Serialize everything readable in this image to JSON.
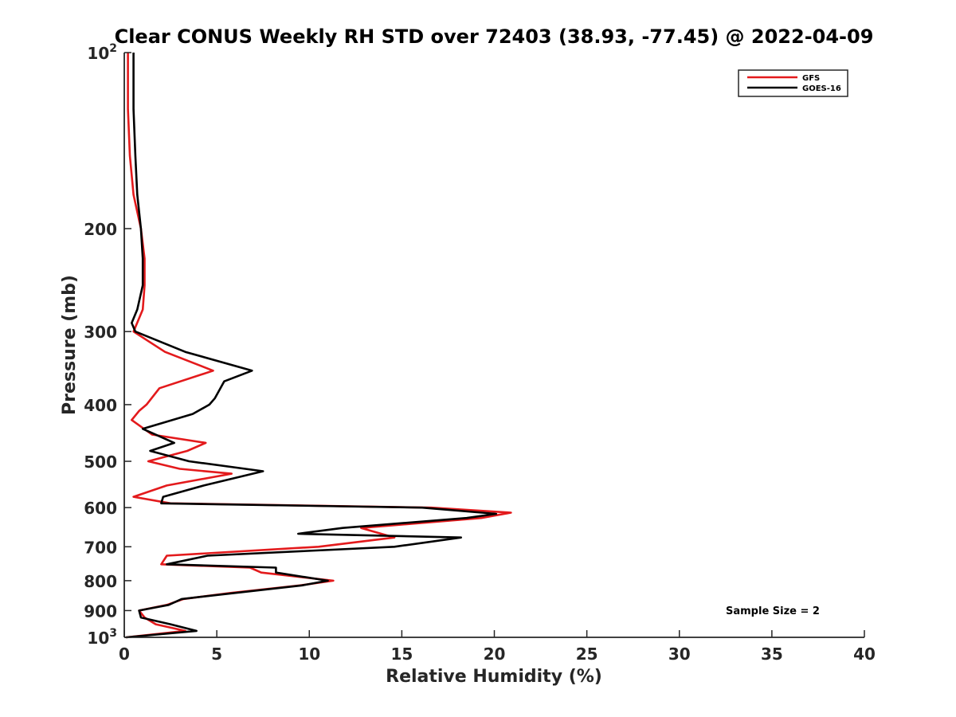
{
  "chart_data": {
    "type": "line",
    "title": "Clear CONUS Weekly RH STD over 72403 (38.93, -77.45) @ 2022-04-09",
    "xlabel": "Relative Humidity (%)",
    "ylabel": "Pressure (mb)",
    "xlim": [
      0,
      40
    ],
    "ylim": [
      100,
      1000
    ],
    "y_scale": "log",
    "y_reversed": true,
    "x_ticks": [
      0,
      5,
      10,
      15,
      20,
      25,
      30,
      35,
      40
    ],
    "x_tick_labels": [
      "0",
      "5",
      "10",
      "15",
      "20",
      "25",
      "30",
      "35",
      "40"
    ],
    "y_ticks": [
      100,
      200,
      300,
      400,
      500,
      600,
      700,
      800,
      900,
      1000
    ],
    "y_tick_labels": [
      {
        "base": "10",
        "exp": "2"
      },
      {
        "text": "200"
      },
      {
        "text": "300"
      },
      {
        "text": "400"
      },
      {
        "text": "500"
      },
      {
        "text": "600"
      },
      {
        "text": "700"
      },
      {
        "text": "800"
      },
      {
        "text": "900"
      },
      {
        "base": "10",
        "exp": "3"
      }
    ],
    "grid": false,
    "legend_position": "top-right",
    "annotation": "Sample Size = 2",
    "series": [
      {
        "name": "GFS",
        "color": "#e31a1c",
        "points": [
          [
            0.2,
            100
          ],
          [
            0.2,
            125
          ],
          [
            0.3,
            150
          ],
          [
            0.5,
            175
          ],
          [
            0.9,
            200
          ],
          [
            1.1,
            225
          ],
          [
            1.1,
            250
          ],
          [
            1.0,
            275
          ],
          [
            0.5,
            300
          ],
          [
            2.2,
            325
          ],
          [
            4.8,
            350
          ],
          [
            1.9,
            375
          ],
          [
            1.2,
            400
          ],
          [
            0.8,
            410
          ],
          [
            0.4,
            425
          ],
          [
            1.5,
            450
          ],
          [
            4.4,
            465
          ],
          [
            3.4,
            480
          ],
          [
            1.3,
            500
          ],
          [
            3.0,
            515
          ],
          [
            5.8,
            525
          ],
          [
            2.3,
            550
          ],
          [
            0.5,
            575
          ],
          [
            2.5,
            590
          ],
          [
            16.6,
            600
          ],
          [
            20.9,
            612
          ],
          [
            19.3,
            625
          ],
          [
            12.8,
            650
          ],
          [
            14.6,
            675
          ],
          [
            10.5,
            700
          ],
          [
            2.3,
            725
          ],
          [
            2.0,
            750
          ],
          [
            6.8,
            760
          ],
          [
            7.4,
            775
          ],
          [
            11.3,
            800
          ],
          [
            9.5,
            815
          ],
          [
            5.7,
            840
          ],
          [
            3.2,
            860
          ],
          [
            2.3,
            880
          ],
          [
            0.8,
            900
          ],
          [
            1.1,
            925
          ],
          [
            1.7,
            950
          ],
          [
            3.3,
            975
          ],
          [
            0.1,
            1000
          ]
        ]
      },
      {
        "name": "GOES-16",
        "color": "#000000",
        "points": [
          [
            0.5,
            100
          ],
          [
            0.5,
            125
          ],
          [
            0.6,
            150
          ],
          [
            0.7,
            175
          ],
          [
            0.9,
            200
          ],
          [
            1.0,
            225
          ],
          [
            1.0,
            250
          ],
          [
            0.7,
            275
          ],
          [
            0.4,
            290
          ],
          [
            0.6,
            300
          ],
          [
            3.3,
            325
          ],
          [
            6.9,
            350
          ],
          [
            5.4,
            365
          ],
          [
            4.9,
            390
          ],
          [
            4.6,
            400
          ],
          [
            3.7,
            415
          ],
          [
            1.0,
            440
          ],
          [
            2.7,
            465
          ],
          [
            1.4,
            480
          ],
          [
            3.5,
            500
          ],
          [
            7.5,
            520
          ],
          [
            4.3,
            550
          ],
          [
            2.1,
            575
          ],
          [
            2.0,
            590
          ],
          [
            16.1,
            600
          ],
          [
            20.1,
            615
          ],
          [
            18.5,
            625
          ],
          [
            11.8,
            650
          ],
          [
            9.4,
            665
          ],
          [
            18.2,
            675
          ],
          [
            14.6,
            700
          ],
          [
            4.5,
            725
          ],
          [
            2.3,
            750
          ],
          [
            8.2,
            760
          ],
          [
            8.2,
            775
          ],
          [
            11.0,
            800
          ],
          [
            9.6,
            815
          ],
          [
            3.1,
            860
          ],
          [
            2.4,
            880
          ],
          [
            0.8,
            900
          ],
          [
            0.9,
            925
          ],
          [
            2.5,
            950
          ],
          [
            3.9,
            975
          ],
          [
            0.1,
            1000
          ]
        ]
      }
    ]
  }
}
